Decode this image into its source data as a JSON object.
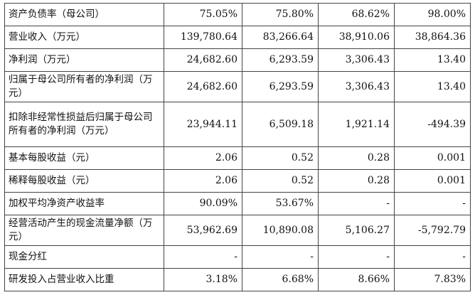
{
  "table": {
    "rows": [
      {
        "label": "资产负债率（母公司）",
        "values": [
          "75.05%",
          "75.80%",
          "68.62%",
          "98.00%"
        ]
      },
      {
        "label": "营业收入（万元）",
        "values": [
          "139,780.64",
          "83,266.64",
          "38,910.06",
          "38,864.36"
        ]
      },
      {
        "label": "净利润（万元）",
        "values": [
          "24,682.60",
          "6,293.59",
          "3,306.43",
          "13.40"
        ]
      },
      {
        "label": "归属于母公司所有者的净利润（万元）",
        "values": [
          "24,682.60",
          "6,293.59",
          "3,306.43",
          "13.40"
        ]
      },
      {
        "label": "扣除非经常性损益后归属于母公司所有者的净利润（万元）",
        "values": [
          "23,944.11",
          "6,509.18",
          "1,921.14",
          "-494.39"
        ]
      },
      {
        "label": "基本每股收益（元）",
        "values": [
          "2.06",
          "0.52",
          "0.28",
          "0.001"
        ]
      },
      {
        "label": "稀释每股收益（元）",
        "values": [
          "2.06",
          "0.52",
          "0.28",
          "0.001"
        ]
      },
      {
        "label": "加权平均净资产收益率",
        "values": [
          "90.09%",
          "53.67%",
          "-",
          "-"
        ]
      },
      {
        "label": "经营活动产生的现金流量净额（万元）",
        "values": [
          "53,962.69",
          "10,890.08",
          "5,106.27",
          "-5,792.79"
        ]
      },
      {
        "label": "现金分红",
        "values": [
          "-",
          "-",
          "-",
          "-"
        ]
      },
      {
        "label": "研发投入占营业收入比重",
        "values": [
          "3.18%",
          "6.68%",
          "8.66%",
          "7.83%"
        ]
      }
    ]
  }
}
